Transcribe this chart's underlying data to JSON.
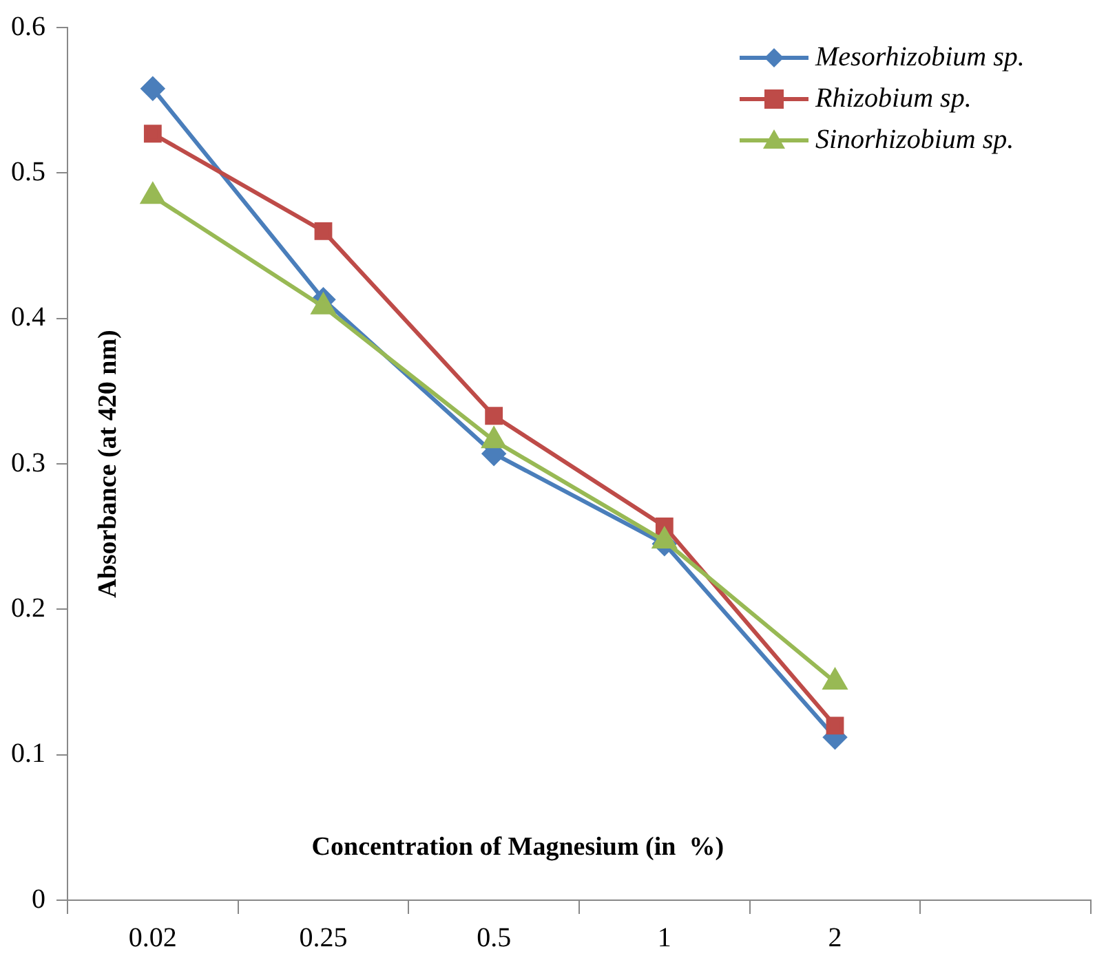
{
  "chart_data": {
    "type": "line",
    "xlabel": "Concentration of Magnesium (in  %)",
    "ylabel": "Absorbance (at 420 nm)",
    "categories": [
      "0.02",
      "0.25",
      "0.5",
      "1",
      "2",
      null
    ],
    "series": [
      {
        "name": "Mesorhizobium sp.",
        "color": "#4a7ebb",
        "marker": "diamond",
        "values": [
          0.558,
          0.413,
          0.307,
          0.245,
          0.112,
          null
        ]
      },
      {
        "name": "Rhizobium sp.",
        "color": "#be4b48",
        "marker": "square",
        "values": [
          0.527,
          0.46,
          0.333,
          0.257,
          0.12,
          null
        ]
      },
      {
        "name": "Sinorhizobium sp.",
        "color": "#98b954",
        "marker": "triangle",
        "values": [
          0.484,
          0.408,
          0.316,
          0.247,
          0.15,
          null
        ]
      }
    ],
    "ylim": [
      0,
      0.6
    ],
    "yticks": [
      0,
      0.1,
      0.2,
      0.3,
      0.4,
      0.5,
      0.6
    ],
    "grid": false,
    "legend": "top right",
    "line_style": "solid"
  }
}
